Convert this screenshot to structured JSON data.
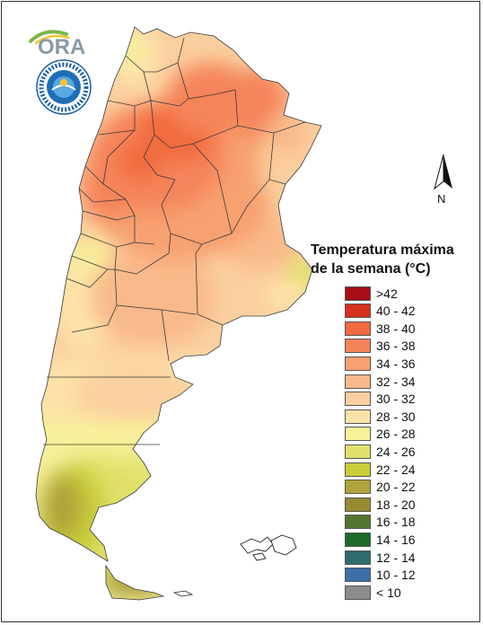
{
  "logo": {
    "text": "ORA",
    "seal_icon": "smn-seal-icon"
  },
  "north_arrow": {
    "label": "N",
    "icon": "north-arrow-icon"
  },
  "legend": {
    "title_line1": "Temperatura máxima",
    "title_line2": "de la semana (°C)",
    "items": [
      {
        "label": ">42",
        "color": "#a50f15"
      },
      {
        "label": "40 - 42",
        "color": "#d7301f"
      },
      {
        "label": "38 - 40",
        "color": "#f26a3e"
      },
      {
        "label": "36 - 38",
        "color": "#f5845a"
      },
      {
        "label": "34 - 36",
        "color": "#f7a070"
      },
      {
        "label": "32 - 34",
        "color": "#f9b98a"
      },
      {
        "label": "30 - 32",
        "color": "#fbcf9f"
      },
      {
        "label": "28 - 30",
        "color": "#fde3a8"
      },
      {
        "label": "26 - 28",
        "color": "#f7f19a"
      },
      {
        "label": "24 - 26",
        "color": "#e1e16a"
      },
      {
        "label": "22 - 24",
        "color": "#cacd3a"
      },
      {
        "label": "20 - 22",
        "color": "#b0a33b"
      },
      {
        "label": "18 - 20",
        "color": "#9a8a34"
      },
      {
        "label": "16 - 18",
        "color": "#51762f"
      },
      {
        "label": "14 - 16",
        "color": "#1d6a2a"
      },
      {
        "label": "12 - 14",
        "color": "#2e6b6c"
      },
      {
        "label": "10 - 12",
        "color": "#3a6fa8"
      },
      {
        "label": "< 10",
        "color": "#8c8c8c"
      }
    ]
  }
}
